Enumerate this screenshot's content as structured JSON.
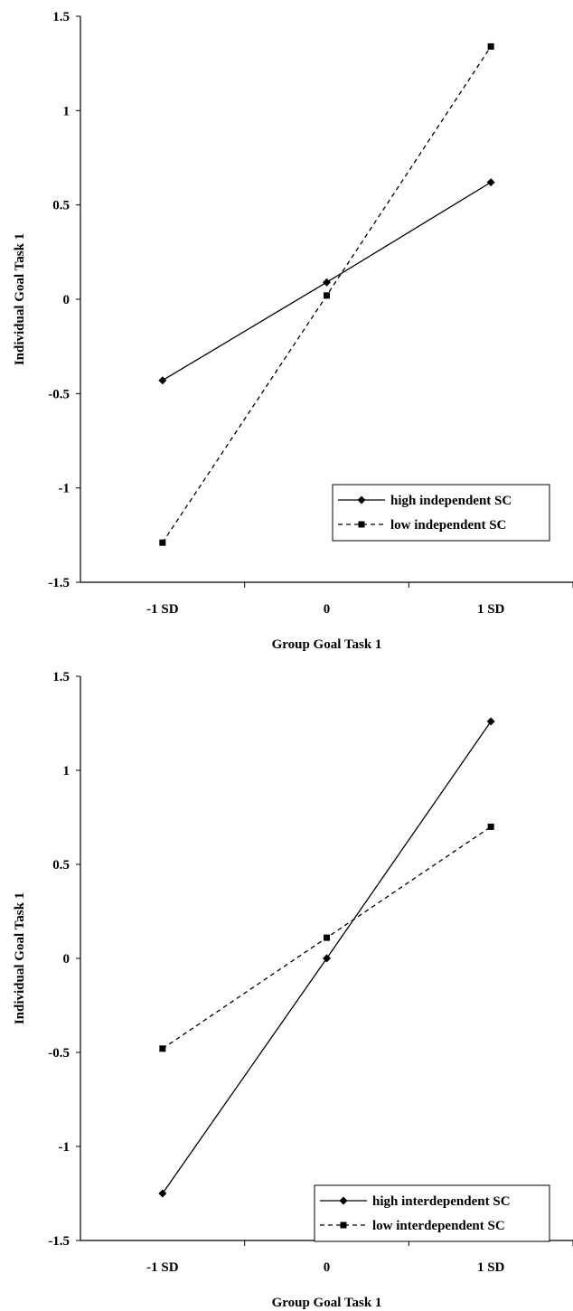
{
  "chart_data": [
    {
      "type": "line",
      "categories": [
        "-1 SD",
        "0",
        "1 SD"
      ],
      "xlabel": "Group Goal Task 1",
      "ylabel": "Individual Goal Task 1",
      "ylim": [
        -1.5,
        1.5
      ],
      "yticks": [
        "1.5",
        "1",
        "0.5",
        "0",
        "-0.5",
        "-1",
        "-1.5"
      ],
      "grid": false,
      "legend_position": "bottom-right",
      "series": [
        {
          "name": "high independent SC",
          "values": [
            -0.43,
            0.09,
            0.62
          ],
          "style": "solid",
          "marker": "diamond"
        },
        {
          "name": "low independent SC",
          "values": [
            -1.29,
            0.02,
            1.34
          ],
          "style": "dashed",
          "marker": "square"
        }
      ]
    },
    {
      "type": "line",
      "categories": [
        "-1 SD",
        "0",
        "1 SD"
      ],
      "xlabel": "Group Goal Task 1",
      "ylabel": "Individual Goal Task 1",
      "ylim": [
        -1.5,
        1.5
      ],
      "yticks": [
        "1.5",
        "1",
        "0.5",
        "0",
        "-0.5",
        "-1",
        "-1.5"
      ],
      "grid": false,
      "legend_position": "bottom-right",
      "series": [
        {
          "name": "high interdependent SC",
          "values": [
            -1.25,
            0.0,
            1.26
          ],
          "style": "solid",
          "marker": "diamond"
        },
        {
          "name": "low interdependent SC",
          "values": [
            -0.48,
            0.11,
            0.7
          ],
          "style": "dashed",
          "marker": "square"
        }
      ]
    }
  ],
  "colors": {
    "line": "#000000",
    "background": "#ffffff"
  }
}
